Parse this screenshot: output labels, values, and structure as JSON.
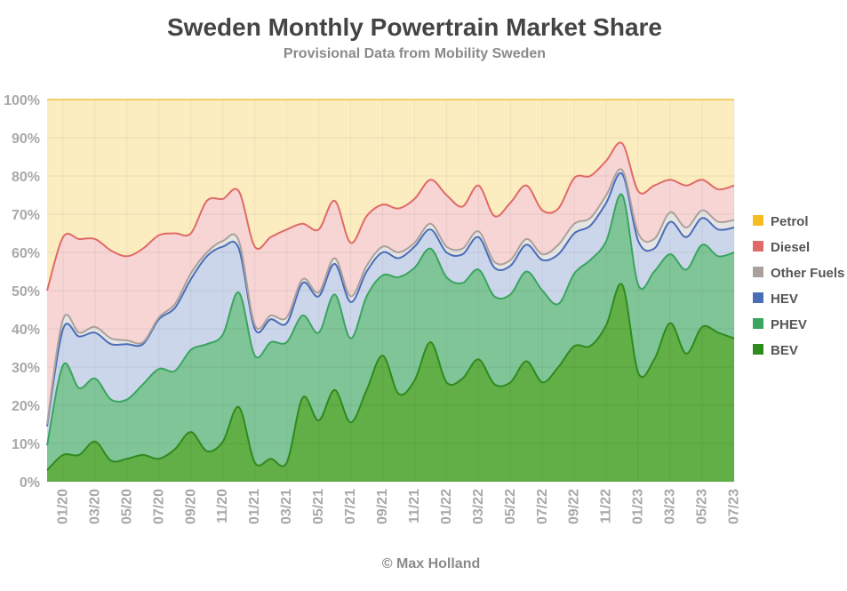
{
  "chart_data": {
    "type": "area",
    "title": "Sweden Monthly Powertrain Market Share",
    "subtitle": "Provisional Data from Mobility Sweden",
    "credit": "© Max Holland",
    "stacked": true,
    "ylim": [
      0,
      100
    ],
    "y_ticks": [
      "0%",
      "10%",
      "20%",
      "30%",
      "40%",
      "50%",
      "60%",
      "70%",
      "80%",
      "90%",
      "100%"
    ],
    "grid": true,
    "legend_position": "right",
    "x": [
      "12/19",
      "01/20",
      "02/20",
      "03/20",
      "04/20",
      "05/20",
      "06/20",
      "07/20",
      "08/20",
      "09/20",
      "10/20",
      "11/20",
      "12/20",
      "01/21",
      "02/21",
      "03/21",
      "04/21",
      "05/21",
      "06/21",
      "07/21",
      "08/21",
      "09/21",
      "10/21",
      "11/21",
      "12/21",
      "01/22",
      "02/22",
      "03/22",
      "04/22",
      "05/22",
      "06/22",
      "07/22",
      "08/22",
      "09/22",
      "10/22",
      "11/22",
      "12/22",
      "01/23",
      "02/23",
      "03/23",
      "04/23",
      "05/23",
      "06/23",
      "07/23"
    ],
    "x_tick_labels": [
      "01/20",
      "03/20",
      "05/20",
      "07/20",
      "09/20",
      "11/20",
      "01/21",
      "03/21",
      "05/21",
      "07/21",
      "09/21",
      "11/21",
      "01/22",
      "03/22",
      "05/22",
      "07/22",
      "09/22",
      "11/22",
      "01/23",
      "03/23",
      "05/23",
      "07/23"
    ],
    "series": [
      {
        "name": "BEV",
        "color": "#2e8b1e",
        "values": [
          3,
          7,
          7,
          10.5,
          5.5,
          6,
          7,
          6,
          8.5,
          13,
          8,
          10.5,
          19.5,
          5,
          6,
          5,
          22,
          16,
          24,
          15.5,
          24,
          33,
          23,
          26.5,
          36.5,
          26,
          27,
          32,
          25.5,
          26,
          31.5,
          26,
          30,
          35.5,
          35.5,
          41,
          51.5,
          28.5,
          32,
          41.5,
          33.5,
          40.5,
          39,
          37.5
        ]
      },
      {
        "name": "PHEV",
        "color": "#3aa55f",
        "values": [
          6.5,
          23.5,
          17.5,
          16.5,
          16,
          15.5,
          18.5,
          23.5,
          20.5,
          21.5,
          28,
          28,
          30,
          28,
          30.5,
          31.5,
          21.5,
          23,
          25,
          22,
          24.5,
          21,
          30.5,
          29.5,
          24.5,
          27.5,
          25,
          23.5,
          23,
          23,
          23.5,
          24,
          16.5,
          19,
          22.5,
          22,
          23.5,
          23,
          23,
          18,
          22,
          21.5,
          20,
          22.5
        ]
      },
      {
        "name": "HEV",
        "color": "#4a6db8",
        "values": [
          5,
          9.5,
          13.5,
          12,
          14.5,
          14.5,
          10.5,
          13,
          16.5,
          18.5,
          23,
          23,
          11.5,
          7,
          6,
          5,
          8.5,
          9.5,
          8,
          9.5,
          6.5,
          6,
          5,
          5.5,
          5,
          6.5,
          7.5,
          8.5,
          7.5,
          7.5,
          7,
          8,
          13,
          10.5,
          9,
          10,
          5.5,
          11.5,
          6,
          8.5,
          8.5,
          7,
          7,
          6.5
        ]
      },
      {
        "name": "Other Fuels",
        "color": "#aaa19c",
        "values": [
          0.5,
          2.5,
          1,
          1.5,
          1.5,
          1,
          0.5,
          0.5,
          1,
          1.5,
          1,
          1.5,
          2,
          1,
          1,
          1.5,
          1,
          1,
          1.5,
          1.5,
          1.5,
          1.5,
          1.5,
          1,
          1.5,
          1.5,
          1.5,
          1.5,
          1.5,
          1.5,
          1.5,
          1.5,
          2.5,
          2.5,
          2,
          2,
          1,
          2,
          2.5,
          2.5,
          2.5,
          2,
          2,
          2
        ]
      },
      {
        "name": "Diesel",
        "color": "#e06a67",
        "values": [
          35,
          21.5,
          24.5,
          23,
          23,
          22,
          24.5,
          21.5,
          18.5,
          10.5,
          13.5,
          11,
          13,
          20.5,
          20.5,
          23,
          14.5,
          16.5,
          15,
          14,
          13,
          11,
          11.5,
          11.5,
          11.5,
          13.5,
          11,
          12,
          12,
          15,
          14,
          11.5,
          9.5,
          12,
          11,
          9,
          7,
          11,
          14,
          8.5,
          11,
          8,
          8.5,
          9
        ]
      },
      {
        "name": "Petrol",
        "color": "#f5be1e",
        "values": [
          50,
          36,
          36.5,
          36.5,
          39.5,
          41,
          39,
          35.5,
          35,
          35,
          27.5,
          26,
          24,
          38.5,
          36,
          34,
          32.5,
          34,
          26.5,
          37.5,
          30.5,
          27.5,
          28.5,
          26,
          21,
          25,
          28,
          22.5,
          30.5,
          27,
          22.5,
          29,
          28.5,
          20.5,
          20,
          16,
          11.5,
          24.5,
          22.5,
          21,
          22.5,
          21,
          23.5,
          22.5
        ]
      }
    ],
    "legend_order": [
      "Petrol",
      "Diesel",
      "Other Fuels",
      "HEV",
      "PHEV",
      "BEV"
    ]
  }
}
